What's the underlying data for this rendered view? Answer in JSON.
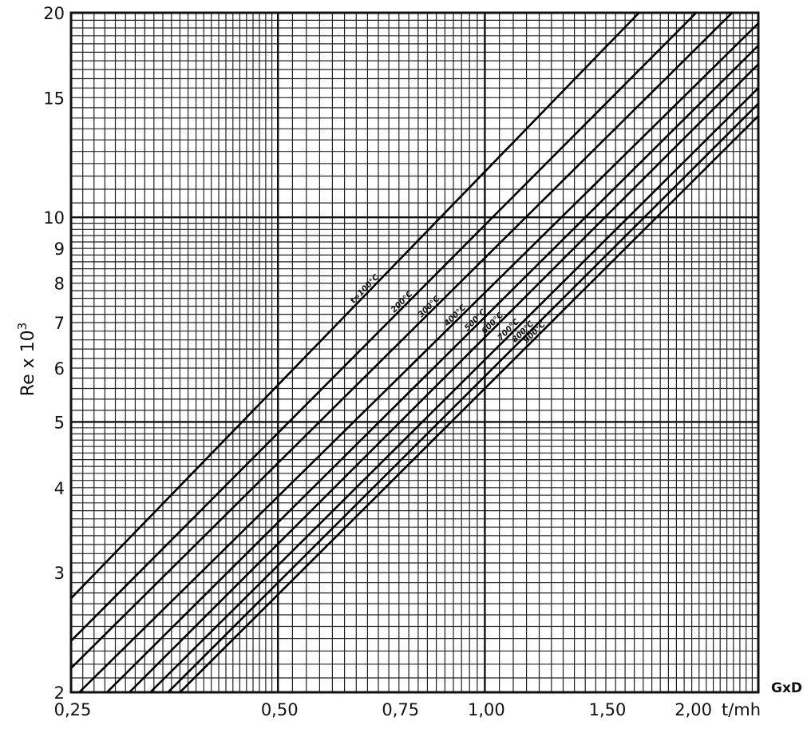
{
  "chart_data": {
    "type": "line",
    "title": "",
    "xlabel": "GxD",
    "x_unit": "t/mh",
    "ylabel": "Re x 10",
    "ylabel_superscript": "3",
    "x_scale": "log",
    "y_scale": "log",
    "xlim": [
      0.25,
      2.5
    ],
    "ylim": [
      2,
      20
    ],
    "grid": true,
    "x_ticks": [
      {
        "value": 0.25,
        "label": "0,25"
      },
      {
        "value": 0.5,
        "label": "0,50"
      },
      {
        "value": 0.75,
        "label": "0,75"
      },
      {
        "value": 1.0,
        "label": "1,00"
      },
      {
        "value": 1.5,
        "label": "1,50"
      },
      {
        "value": 2.0,
        "label": "2,00"
      }
    ],
    "y_ticks": [
      {
        "value": 2,
        "label": "2"
      },
      {
        "value": 3,
        "label": "3"
      },
      {
        "value": 4,
        "label": "4"
      },
      {
        "value": 5,
        "label": "5"
      },
      {
        "value": 6,
        "label": "6"
      },
      {
        "value": 7,
        "label": "7"
      },
      {
        "value": 8,
        "label": "8"
      },
      {
        "value": 9,
        "label": "9"
      },
      {
        "value": 10,
        "label": "10"
      },
      {
        "value": 15,
        "label": "15"
      },
      {
        "value": 20,
        "label": "20"
      }
    ],
    "series": [
      {
        "name": "t=100°C",
        "x": [
          0.25,
          1.676
        ],
        "y": [
          2.75,
          20
        ]
      },
      {
        "name": "200°C",
        "x": [
          0.25,
          2.03
        ],
        "y": [
          2.38,
          20
        ]
      },
      {
        "name": "300°C",
        "x": [
          0.25,
          2.29
        ],
        "y": [
          2.17,
          20
        ]
      },
      {
        "name": "400°C",
        "x": [
          0.257,
          2.5
        ],
        "y": [
          2.0,
          19.3
        ]
      },
      {
        "name": "500°C",
        "x": [
          0.282,
          2.5
        ],
        "y": [
          2.0,
          17.9
        ]
      },
      {
        "name": "600°C",
        "x": [
          0.304,
          2.5
        ],
        "y": [
          2.0,
          16.8
        ]
      },
      {
        "name": "700°C",
        "x": [
          0.326,
          2.5
        ],
        "y": [
          2.0,
          15.5
        ]
      },
      {
        "name": "800°C",
        "x": [
          0.346,
          2.5
        ],
        "y": [
          2.0,
          14.7
        ]
      },
      {
        "name": "900°C",
        "x": [
          0.36,
          2.5
        ],
        "y": [
          2.0,
          14.1
        ]
      }
    ]
  }
}
